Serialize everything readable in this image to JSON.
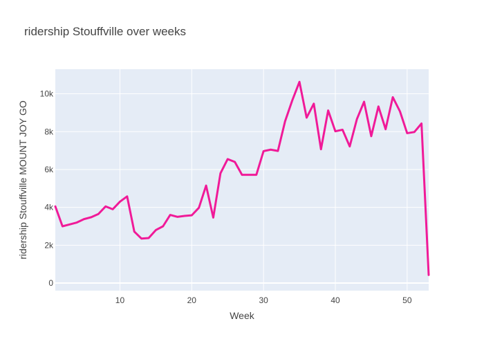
{
  "chart_data": {
    "type": "line",
    "title": "ridership Stouffville over weeks",
    "xlabel": "Week",
    "ylabel": "ridership Stouffville MOUNT JOY GO",
    "xlim": [
      1,
      53
    ],
    "ylim": [
      -400,
      11300
    ],
    "x_ticks": [
      10,
      20,
      30,
      40,
      50
    ],
    "y_ticks": [
      0,
      2000,
      4000,
      6000,
      8000,
      10000
    ],
    "y_tick_labels": [
      "0",
      "2k",
      "4k",
      "6k",
      "8k",
      "10k"
    ],
    "grid": true,
    "line_color": "#f01a98",
    "plot_background": "#e5ecf6",
    "series": [
      {
        "x": [
          1,
          2,
          3,
          4,
          5,
          6,
          7,
          8,
          9,
          10,
          11,
          12,
          13,
          14,
          15,
          16,
          17,
          18,
          19,
          20,
          21,
          22,
          23,
          24,
          25,
          26,
          27,
          28,
          29,
          30,
          31,
          32,
          33,
          34,
          35,
          36,
          37,
          38,
          39,
          40,
          41,
          42,
          43,
          44,
          45,
          46,
          47,
          48,
          49,
          50,
          51,
          52,
          53
        ],
        "values": [
          4050,
          3000,
          3100,
          3200,
          3380,
          3480,
          3650,
          4050,
          3900,
          4300,
          4580,
          2720,
          2350,
          2380,
          2800,
          3000,
          3600,
          3500,
          3550,
          3580,
          3980,
          5150,
          3460,
          5800,
          6550,
          6400,
          5720,
          5720,
          5720,
          6970,
          7050,
          6980,
          8550,
          9650,
          10630,
          8740,
          9480,
          7070,
          9120,
          8020,
          8100,
          7220,
          8660,
          9580,
          7760,
          9330,
          8130,
          9820,
          9070,
          7920,
          7980,
          8430,
          430
        ]
      }
    ]
  }
}
